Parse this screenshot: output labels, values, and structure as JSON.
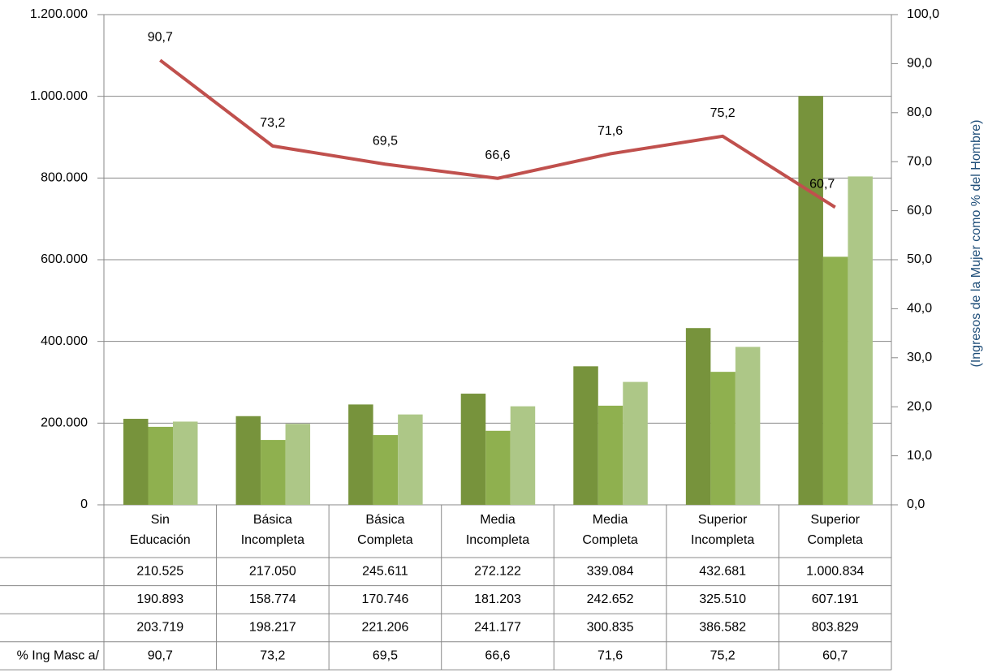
{
  "chart_data": {
    "type": "bar",
    "y2label": "(Ingresos de la Mujer como % del Hombre)",
    "categories": [
      [
        "Sin",
        "Educación"
      ],
      [
        "Básica",
        "Incompleta"
      ],
      [
        "Básica",
        "Completa"
      ],
      [
        "Media",
        "Incompleta"
      ],
      [
        "Media",
        "Completa"
      ],
      [
        "Superior",
        "Incompleta"
      ],
      [
        "Superior",
        "Completa"
      ]
    ],
    "series": [
      {
        "color": "#77933c",
        "values": [
          210525,
          217050,
          245611,
          272122,
          339084,
          432681,
          1000834
        ],
        "value_labels": [
          "210.525",
          "217.050",
          "245.611",
          "272.122",
          "339.084",
          "432.681",
          "1.000.834"
        ]
      },
      {
        "color": "#8fb04f",
        "values": [
          190893,
          158774,
          170746,
          181203,
          242652,
          325510,
          607191
        ],
        "value_labels": [
          "190.893",
          "158.774",
          "170.746",
          "181.203",
          "242.652",
          "325.510",
          "607.191"
        ]
      },
      {
        "color": "#adc787",
        "values": [
          203719,
          198217,
          221206,
          241177,
          300835,
          386582,
          803829
        ],
        "value_labels": [
          "203.719",
          "198.217",
          "221.206",
          "241.177",
          "300.835",
          "386.582",
          "803.829"
        ]
      },
      {
        "name": "% Ing Masc a/",
        "type": "line",
        "axis": "y2",
        "color": "#c0504d",
        "values": [
          90.7,
          73.2,
          69.5,
          66.6,
          71.6,
          75.2,
          60.7
        ],
        "value_labels": [
          "90,7",
          "73,2",
          "69,5",
          "66,6",
          "71,6",
          "75,2",
          "60,7"
        ]
      }
    ],
    "ylim": [
      0,
      1200000
    ],
    "yticks": [
      0,
      {
        "value": 200000,
        "label": "200.000"
      },
      {
        "value": 400000,
        "label": "400.000"
      },
      {
        "value": 600000,
        "label": "600.000"
      },
      {
        "value": 800000,
        "label": "800.000"
      },
      {
        "value": 1000000,
        "label": "1.000.000"
      },
      {
        "value": 1200000,
        "label": "1.200.000"
      }
    ],
    "y2lim": [
      0,
      100
    ],
    "y2ticks": [
      {
        "value": 0,
        "label": "0,0"
      },
      {
        "value": 10,
        "label": "10,0"
      },
      {
        "value": 20,
        "label": "20,0"
      },
      {
        "value": 30,
        "label": "30,0"
      },
      {
        "value": 40,
        "label": "40,0"
      },
      {
        "value": 50,
        "label": "50,0"
      },
      {
        "value": 60,
        "label": "60,0"
      },
      {
        "value": 70,
        "label": "70,0"
      },
      {
        "value": 80,
        "label": "80,0"
      },
      {
        "value": 90,
        "label": "90,0"
      },
      {
        "value": 100,
        "label": "100,0"
      }
    ],
    "grid": true
  }
}
